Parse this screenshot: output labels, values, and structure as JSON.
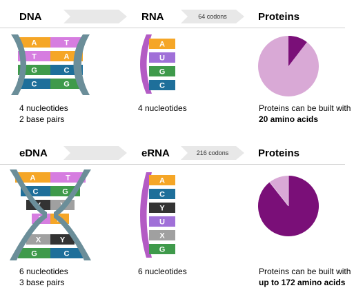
{
  "colors": {
    "orange": "#f5a627",
    "violet": "#d67de0",
    "lightpurple": "#a070d8",
    "green": "#3f9a4b",
    "teal": "#1e6f9a",
    "black": "#333333",
    "gray": "#a0a0a0",
    "backbone": "#6b8e99",
    "rnaBackbone": "#b35bc4",
    "pieLight": "#d9a9d6",
    "pieDark": "#7a0f78"
  },
  "top": {
    "dna_title": "DNA",
    "rna_title": "RNA",
    "codons": "64 codons",
    "proteins_title": "Proteins",
    "dna_pairs": [
      {
        "left": "A",
        "right": "T",
        "lc": "orange",
        "rc": "violet"
      },
      {
        "left": "T",
        "right": "A",
        "lc": "violet",
        "rc": "orange"
      },
      {
        "left": "G",
        "right": "C",
        "lc": "green",
        "rc": "teal"
      },
      {
        "left": "C",
        "right": "G",
        "lc": "teal",
        "rc": "green"
      }
    ],
    "rna_bases": [
      {
        "b": "A",
        "c": "orange"
      },
      {
        "b": "U",
        "c": "lightpurple"
      },
      {
        "b": "G",
        "c": "green"
      },
      {
        "b": "C",
        "c": "teal"
      }
    ],
    "dna_text1": "4 nucleotides",
    "dna_text2": "2 base pairs",
    "rna_text": "4 nucleotides",
    "protein_text1": "Proteins can be built with",
    "protein_text2": "20 amino acids",
    "pie_fraction_dark": 0.104
  },
  "bottom": {
    "dna_title": "eDNA",
    "rna_title": "eRNA",
    "codons": "216 codons",
    "proteins_title": "Proteins",
    "dna_pairs": [
      {
        "left": "A",
        "right": "T",
        "lc": "orange",
        "rc": "violet"
      },
      {
        "left": "C",
        "right": "G",
        "lc": "teal",
        "rc": "green"
      },
      {
        "left": "Y",
        "right": "X",
        "lc": "black",
        "rc": "gray"
      },
      {
        "left": "T",
        "right": "A",
        "lc": "violet",
        "rc": "orange"
      },
      {
        "left": "X",
        "right": "Y",
        "lc": "gray",
        "rc": "black"
      },
      {
        "left": "G",
        "right": "C",
        "lc": "green",
        "rc": "teal"
      }
    ],
    "rna_bases": [
      {
        "b": "A",
        "c": "orange"
      },
      {
        "b": "C",
        "c": "teal"
      },
      {
        "b": "Y",
        "c": "black"
      },
      {
        "b": "U",
        "c": "lightpurple"
      },
      {
        "b": "X",
        "c": "gray"
      },
      {
        "b": "G",
        "c": "green"
      }
    ],
    "dna_text1": "6 nucleotides",
    "dna_text2": "3 base pairs",
    "rna_text": "6 nucleotides",
    "protein_text1": "Proteins can be built with",
    "protein_text2": "up to 172 amino acids",
    "pie_fraction_dark": 0.894
  }
}
